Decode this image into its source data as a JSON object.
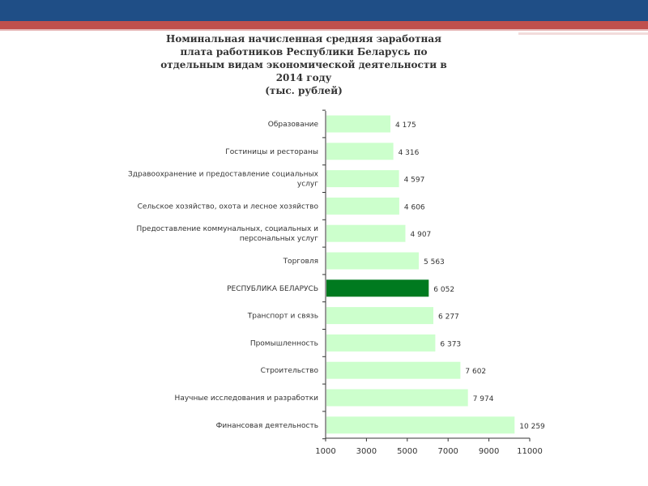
{
  "colors": {
    "banner_blue": "#1f4e86",
    "banner_red": "#c0504d",
    "bar_fill": "#ccffcc",
    "bar_highlight": "#007a1f",
    "axis": "#333333"
  },
  "title_lines": [
    "Номинальная начисленная средняя заработная",
    "плата работников Республики Беларусь по",
    "отдельным видам экономической деятельности в",
    "2014 году",
    "(тыс. рублей)"
  ],
  "chart_data": {
    "type": "bar",
    "orientation": "horizontal",
    "categories": [
      [
        "Образование"
      ],
      [
        "Гостиницы и рестораны"
      ],
      [
        "Здравоохранение и предоставление социальных",
        "услуг"
      ],
      [
        "Сельское хозяйство, охота и лесное хозяйство"
      ],
      [
        "Предоставление коммунальных, социальных и",
        "персональных услуг"
      ],
      [
        "Торговля"
      ],
      [
        "РЕСПУБЛИКА БЕЛАРУСЬ"
      ],
      [
        "Транспорт и связь"
      ],
      [
        "Промышленность"
      ],
      [
        "Строительство"
      ],
      [
        "Научные исследования и разработки"
      ],
      [
        "Финансовая деятельность"
      ]
    ],
    "values": [
      4175,
      4316,
      4597,
      4606,
      4907,
      5563,
      6052,
      6277,
      6373,
      7602,
      7974,
      10259
    ],
    "value_labels": [
      "4 175",
      "4 316",
      "4 597",
      "4 606",
      "4 907",
      "5 563",
      "6 052",
      "6 277",
      "6 373",
      "7 602",
      "7 974",
      "10 259"
    ],
    "highlight_index": 6,
    "xlim": [
      1000,
      11000
    ],
    "xticks": [
      1000,
      3000,
      5000,
      7000,
      9000,
      11000
    ],
    "grid": false,
    "legend": "none"
  }
}
